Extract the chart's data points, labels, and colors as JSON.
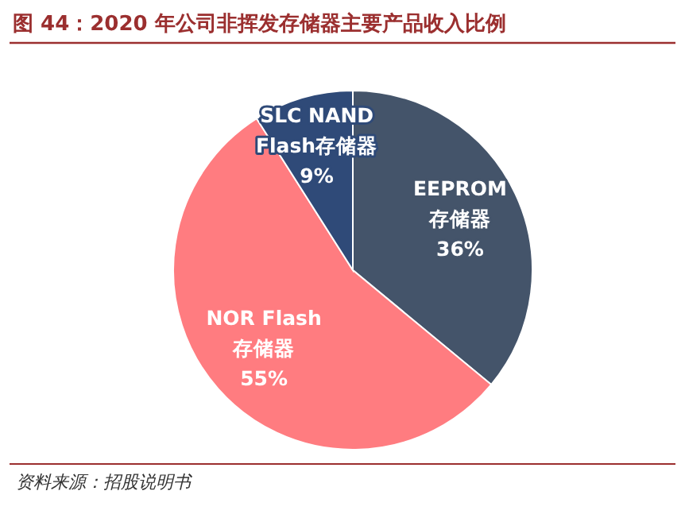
{
  "chart_data": {
    "type": "pie",
    "title": "图 44：2020 年公司非挥发存储器主要产品收入比例",
    "categories": [
      "EEPROM存储器",
      "NOR Flash存储器",
      "SLC NAND Flash存储器"
    ],
    "values": [
      36,
      55,
      9
    ],
    "colors": [
      "#44546a",
      "#ff7c80",
      "#2f4a78"
    ],
    "value_labels": [
      "36%",
      "55%",
      "9%"
    ],
    "annotations": [
      "资料来源：招股说明书"
    ]
  }
}
